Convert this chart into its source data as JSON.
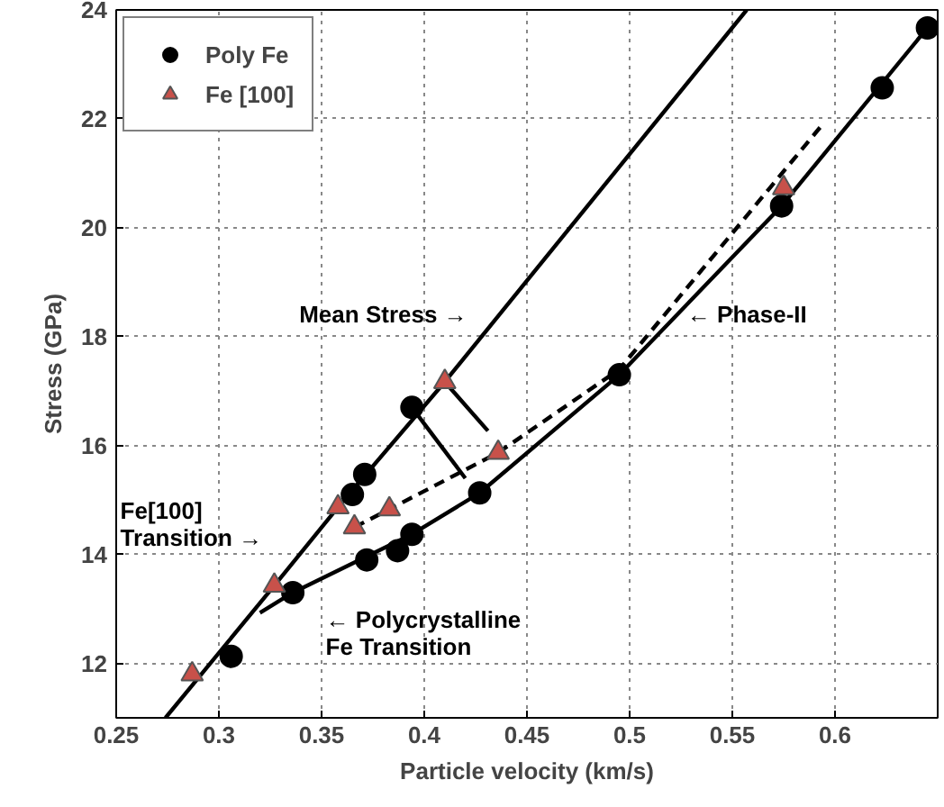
{
  "chart_data": {
    "type": "scatter",
    "xlabel": "Particle velocity (km/s)",
    "ylabel": "Stress (GPa)",
    "xlim": [
      0.25,
      0.65
    ],
    "ylim": [
      11,
      24
    ],
    "xticks": [
      0.25,
      0.3,
      0.35,
      0.4,
      0.45,
      0.5,
      0.55,
      0.6
    ],
    "yticks": [
      12,
      14,
      16,
      18,
      20,
      22,
      24
    ],
    "grid": true,
    "legend": "top left",
    "series": [
      {
        "type": "line",
        "color": "#000000",
        "line_style": "solid",
        "x": [
          0.274,
          0.327,
          0.358,
          0.41,
          0.557
        ],
        "values": [
          11.0,
          13.43,
          14.87,
          17.17,
          24.0
        ]
      },
      {
        "type": "line",
        "color": "#000000",
        "line_style": "solid",
        "x": [
          0.32,
          0.336,
          0.394,
          0.427,
          0.495,
          0.574,
          0.645
        ],
        "values": [
          12.93,
          13.3,
          14.37,
          15.13,
          17.3,
          20.4,
          23.67
        ]
      },
      {
        "type": "line",
        "color": "#000000",
        "line_style": "dashed",
        "x": [
          0.366,
          0.383,
          0.436,
          0.495,
          0.594
        ],
        "values": [
          14.5,
          14.83,
          15.87,
          17.4,
          21.9
        ]
      },
      {
        "type": "line",
        "color": "#000000",
        "line_style": "solid",
        "x": [
          0.394,
          0.42
        ],
        "values": [
          16.7,
          15.4
        ]
      },
      {
        "type": "line",
        "color": "#000000",
        "line_style": "solid",
        "x": [
          0.41,
          0.431
        ],
        "values": [
          17.17,
          16.27
        ]
      },
      {
        "name": "Poly Fe",
        "color": "#000000",
        "marker": "circle",
        "x": [
          0.306,
          0.336,
          0.365,
          0.371,
          0.372,
          0.387,
          0.394,
          0.394,
          0.427,
          0.495,
          0.574,
          0.623,
          0.645
        ],
        "values": [
          12.13,
          13.3,
          15.1,
          15.47,
          13.9,
          14.07,
          14.37,
          16.7,
          15.13,
          17.3,
          20.4,
          22.57,
          23.67
        ]
      },
      {
        "name": "Fe [100]",
        "color": "#c8514a",
        "marker": "triangle",
        "x": [
          0.287,
          0.327,
          0.358,
          0.366,
          0.383,
          0.41,
          0.436,
          0.575
        ],
        "values": [
          11.8,
          13.43,
          14.87,
          14.5,
          14.83,
          17.17,
          15.87,
          20.73
        ]
      }
    ],
    "annotations": [
      "Mean Stress →",
      "← Phase-II",
      "Fe[100]\nTransition →",
      "← Polycrystalline\nFe Transition"
    ]
  }
}
